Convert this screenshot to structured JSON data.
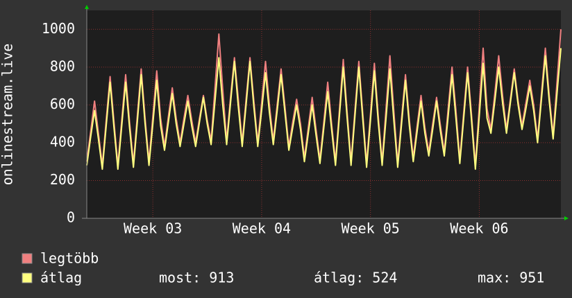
{
  "chart_data": {
    "type": "line",
    "y_label": "onlinestream.live",
    "ylim": [
      0,
      1100
    ],
    "yticks": [
      0,
      200,
      400,
      600,
      800,
      1000
    ],
    "xlim": [
      0,
      122
    ],
    "xticks": [
      {
        "value": 17,
        "label": "Week 03"
      },
      {
        "value": 45,
        "label": "Week 04"
      },
      {
        "value": 73,
        "label": "Week 05"
      },
      {
        "value": 101,
        "label": "Week 06"
      }
    ],
    "grid": true,
    "series": [
      {
        "name": "legtöbb",
        "color": "#f08080",
        "values": [
          300,
          460,
          620,
          450,
          280,
          520,
          750,
          510,
          280,
          520,
          760,
          510,
          290,
          540,
          790,
          530,
          300,
          540,
          780,
          530,
          380,
          540,
          690,
          530,
          400,
          530,
          650,
          520,
          400,
          530,
          650,
          520,
          410,
          690,
          975,
          680,
          410,
          640,
          850,
          630,
          400,
          630,
          850,
          620,
          400,
          610,
          830,
          600,
          410,
          600,
          790,
          590,
          380,
          510,
          630,
          500,
          320,
          480,
          640,
          470,
          310,
          510,
          720,
          500,
          300,
          570,
          840,
          560,
          300,
          570,
          830,
          560,
          290,
          550,
          820,
          540,
          300,
          580,
          860,
          570,
          290,
          530,
          760,
          520,
          320,
          490,
          650,
          480,
          350,
          500,
          640,
          490,
          350,
          580,
          800,
          570,
          310,
          560,
          800,
          550,
          280,
          590,
          900,
          580,
          470,
          660,
          860,
          650,
          470,
          630,
          790,
          620,
          490,
          610,
          730,
          600,
          420,
          660,
          900,
          650,
          440,
          720,
          1000
        ]
      },
      {
        "name": "átlag",
        "color": "#ffff80",
        "values": [
          280,
          430,
          570,
          420,
          260,
          490,
          720,
          480,
          260,
          490,
          720,
          480,
          270,
          510,
          760,
          500,
          280,
          500,
          730,
          490,
          360,
          510,
          660,
          500,
          380,
          500,
          620,
          490,
          380,
          510,
          640,
          500,
          390,
          620,
          850,
          600,
          390,
          610,
          830,
          590,
          380,
          600,
          830,
          590,
          380,
          570,
          770,
          560,
          390,
          570,
          760,
          560,
          360,
          480,
          600,
          470,
          300,
          450,
          600,
          440,
          290,
          480,
          670,
          470,
          280,
          540,
          800,
          530,
          280,
          540,
          800,
          530,
          270,
          520,
          780,
          510,
          280,
          530,
          790,
          520,
          270,
          500,
          730,
          490,
          300,
          460,
          620,
          450,
          330,
          470,
          620,
          460,
          330,
          540,
          760,
          530,
          290,
          530,
          770,
          520,
          260,
          540,
          820,
          530,
          450,
          620,
          800,
          610,
          450,
          610,
          770,
          600,
          470,
          580,
          700,
          570,
          400,
          630,
          860,
          620,
          420,
          660,
          900
        ]
      }
    ],
    "stats": [
      "most: 913",
      "átlag: 524",
      "max: 951"
    ]
  }
}
